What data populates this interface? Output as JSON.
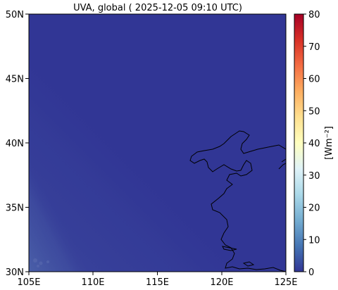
{
  "title": "UVA, global ( 2025-12-05 09:10 UTC)",
  "lon_ticks": [
    "105E",
    "110E",
    "115E",
    "120E",
    "125E"
  ],
  "lat_ticks": [
    "50N",
    "45N",
    "40N",
    "35N",
    "30N"
  ],
  "colorbar": {
    "label": "[Wm⁻²]",
    "ticks": [
      "80",
      "70",
      "60",
      "50",
      "40",
      "30",
      "20",
      "10",
      "0"
    ],
    "min": 0,
    "max": 80,
    "colormap": [
      "#313695",
      "#4575b4",
      "#74add1",
      "#abd9e9",
      "#e0f3f8",
      "#ffffbf",
      "#fee090",
      "#fdae61",
      "#f46d43",
      "#d73027",
      "#a50026"
    ]
  },
  "map": {
    "lon_range": [
      105,
      125
    ],
    "lat_range": [
      30,
      50
    ],
    "field_color": "#313695",
    "gradient_tint": "#4a5fa8",
    "coast_color": "#000000"
  }
}
